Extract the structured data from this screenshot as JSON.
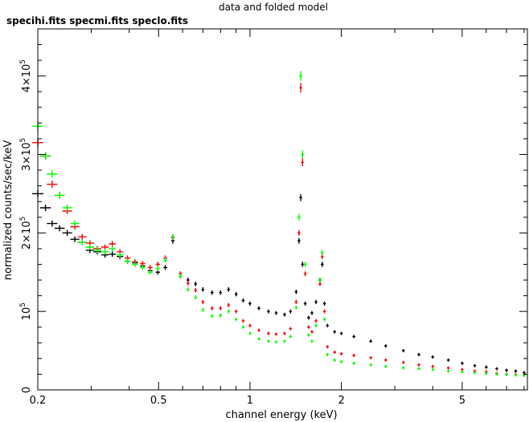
{
  "chart_data": {
    "type": "scatter",
    "title": "data and folded model",
    "subtitle": "specihi.fits  specmi.fits  speclo.fits",
    "xlabel": "channel energy (keV)",
    "ylabel": "normalized counts/sec/keV",
    "x_scale": "log",
    "xlim": [
      0.2,
      8.2
    ],
    "ylim": [
      0,
      460000
    ],
    "x_ticks": [
      {
        "value": 0.2,
        "label": "0.2"
      },
      {
        "value": 0.5,
        "label": "0.5"
      },
      {
        "value": 1,
        "label": "1"
      },
      {
        "value": 2,
        "label": "2"
      },
      {
        "value": 5,
        "label": "5"
      }
    ],
    "y_ticks": [
      {
        "value": 0,
        "label": "0"
      },
      {
        "value": 100000,
        "label": "10^5"
      },
      {
        "value": 200000,
        "label": "2×10^5"
      },
      {
        "value": 300000,
        "label": "3×10^5"
      },
      {
        "value": 400000,
        "label": "4×10^5"
      }
    ],
    "grid": false,
    "legend": "none",
    "marker": "cross with error bars",
    "series": [
      {
        "color": "#000000",
        "points": [
          [
            0.2,
            250000
          ],
          [
            0.212,
            232000
          ],
          [
            0.223,
            212000
          ],
          [
            0.236,
            206000
          ],
          [
            0.25,
            200000
          ],
          [
            0.265,
            192000
          ],
          [
            0.28,
            188000
          ],
          [
            0.297,
            178000
          ],
          [
            0.314,
            176000
          ],
          [
            0.333,
            172000
          ],
          [
            0.352,
            173000
          ],
          [
            0.373,
            170000
          ],
          [
            0.395,
            164000
          ],
          [
            0.418,
            162000
          ],
          [
            0.443,
            158000
          ],
          [
            0.469,
            152000
          ],
          [
            0.497,
            150000
          ],
          [
            0.526,
            156000
          ],
          [
            0.557,
            190000
          ],
          [
            0.59,
            145000
          ],
          [
            0.625,
            140000
          ],
          [
            0.662,
            135000
          ],
          [
            0.7,
            128000
          ],
          [
            0.75,
            124000
          ],
          [
            0.8,
            124000
          ],
          [
            0.85,
            128000
          ],
          [
            0.9,
            122000
          ],
          [
            0.95,
            114000
          ],
          [
            1.0,
            110000
          ],
          [
            1.07,
            104000
          ],
          [
            1.15,
            100000
          ],
          [
            1.22,
            98000
          ],
          [
            1.3,
            96000
          ],
          [
            1.36,
            100000
          ],
          [
            1.42,
            125000
          ],
          [
            1.45,
            190000
          ],
          [
            1.47,
            245000
          ],
          [
            1.49,
            160000
          ],
          [
            1.52,
            110000
          ],
          [
            1.56,
            92000
          ],
          [
            1.6,
            98000
          ],
          [
            1.65,
            112000
          ],
          [
            1.7,
            140000
          ],
          [
            1.73,
            160000
          ],
          [
            1.76,
            110000
          ],
          [
            1.8,
            82000
          ],
          [
            1.9,
            74000
          ],
          [
            2.0,
            72000
          ],
          [
            2.2,
            68000
          ],
          [
            2.5,
            62000
          ],
          [
            2.8,
            56000
          ],
          [
            3.2,
            50000
          ],
          [
            3.6,
            45000
          ],
          [
            4.0,
            42000
          ],
          [
            4.5,
            38000
          ],
          [
            5.0,
            34000
          ],
          [
            5.5,
            31000
          ],
          [
            6.0,
            29000
          ],
          [
            6.5,
            27000
          ],
          [
            7.0,
            25000
          ],
          [
            7.5,
            24000
          ],
          [
            8.0,
            22000
          ]
        ]
      },
      {
        "color": "#ff0000",
        "points": [
          [
            0.2,
            315000
          ],
          [
            0.212,
            298000
          ],
          [
            0.223,
            262000
          ],
          [
            0.236,
            248000
          ],
          [
            0.25,
            228000
          ],
          [
            0.265,
            208000
          ],
          [
            0.28,
            195000
          ],
          [
            0.297,
            187000
          ],
          [
            0.314,
            180000
          ],
          [
            0.333,
            182000
          ],
          [
            0.352,
            186000
          ],
          [
            0.373,
            176000
          ],
          [
            0.395,
            168000
          ],
          [
            0.418,
            163000
          ],
          [
            0.443,
            161000
          ],
          [
            0.469,
            156000
          ],
          [
            0.497,
            160000
          ],
          [
            0.526,
            168000
          ],
          [
            0.557,
            194000
          ],
          [
            0.59,
            148000
          ],
          [
            0.625,
            136000
          ],
          [
            0.662,
            127000
          ],
          [
            0.7,
            112000
          ],
          [
            0.75,
            104000
          ],
          [
            0.8,
            104000
          ],
          [
            0.85,
            108000
          ],
          [
            0.9,
            100000
          ],
          [
            0.95,
            88000
          ],
          [
            1.0,
            82000
          ],
          [
            1.07,
            76000
          ],
          [
            1.15,
            72000
          ],
          [
            1.22,
            71000
          ],
          [
            1.3,
            72000
          ],
          [
            1.36,
            78000
          ],
          [
            1.42,
            112000
          ],
          [
            1.45,
            200000
          ],
          [
            1.47,
            385000
          ],
          [
            1.49,
            290000
          ],
          [
            1.52,
            148000
          ],
          [
            1.56,
            80000
          ],
          [
            1.6,
            74000
          ],
          [
            1.65,
            88000
          ],
          [
            1.7,
            135000
          ],
          [
            1.73,
            170000
          ],
          [
            1.76,
            100000
          ],
          [
            1.8,
            55000
          ],
          [
            1.9,
            48000
          ],
          [
            2.0,
            46000
          ],
          [
            2.2,
            44000
          ],
          [
            2.5,
            41000
          ],
          [
            2.8,
            38000
          ],
          [
            3.2,
            35000
          ],
          [
            3.6,
            32000
          ],
          [
            4.0,
            30000
          ],
          [
            4.5,
            28000
          ],
          [
            5.0,
            26000
          ],
          [
            5.5,
            24000
          ],
          [
            6.0,
            23000
          ],
          [
            6.5,
            21000
          ],
          [
            7.0,
            20000
          ],
          [
            7.5,
            19500
          ],
          [
            8.0,
            19000
          ]
        ]
      },
      {
        "color": "#00ff00",
        "points": [
          [
            0.2,
            336000
          ],
          [
            0.212,
            298000
          ],
          [
            0.223,
            275000
          ],
          [
            0.236,
            248000
          ],
          [
            0.25,
            232000
          ],
          [
            0.265,
            212000
          ],
          [
            0.28,
            188000
          ],
          [
            0.297,
            182000
          ],
          [
            0.314,
            178000
          ],
          [
            0.333,
            176000
          ],
          [
            0.352,
            180000
          ],
          [
            0.373,
            172000
          ],
          [
            0.395,
            164000
          ],
          [
            0.418,
            160000
          ],
          [
            0.443,
            156000
          ],
          [
            0.469,
            150000
          ],
          [
            0.497,
            155000
          ],
          [
            0.526,
            165000
          ],
          [
            0.557,
            195000
          ],
          [
            0.59,
            145000
          ],
          [
            0.625,
            128000
          ],
          [
            0.662,
            118000
          ],
          [
            0.7,
            102000
          ],
          [
            0.75,
            94000
          ],
          [
            0.8,
            95000
          ],
          [
            0.85,
            100000
          ],
          [
            0.9,
            90000
          ],
          [
            0.95,
            80000
          ],
          [
            1.0,
            72000
          ],
          [
            1.07,
            65000
          ],
          [
            1.15,
            62000
          ],
          [
            1.22,
            61000
          ],
          [
            1.3,
            62000
          ],
          [
            1.36,
            68000
          ],
          [
            1.42,
            105000
          ],
          [
            1.45,
            220000
          ],
          [
            1.47,
            400000
          ],
          [
            1.49,
            300000
          ],
          [
            1.52,
            160000
          ],
          [
            1.56,
            70000
          ],
          [
            1.6,
            62000
          ],
          [
            1.65,
            82000
          ],
          [
            1.7,
            140000
          ],
          [
            1.73,
            175000
          ],
          [
            1.76,
            90000
          ],
          [
            1.8,
            45000
          ],
          [
            1.9,
            38000
          ],
          [
            2.0,
            36000
          ],
          [
            2.2,
            34000
          ],
          [
            2.5,
            32000
          ],
          [
            2.8,
            30000
          ],
          [
            3.2,
            28000
          ],
          [
            3.6,
            27000
          ],
          [
            4.0,
            26000
          ],
          [
            4.5,
            24000
          ],
          [
            5.0,
            23000
          ],
          [
            5.5,
            22000
          ],
          [
            6.0,
            21000
          ],
          [
            6.5,
            20000
          ],
          [
            7.0,
            19500
          ],
          [
            7.5,
            19000
          ],
          [
            8.0,
            18500
          ]
        ]
      }
    ]
  }
}
